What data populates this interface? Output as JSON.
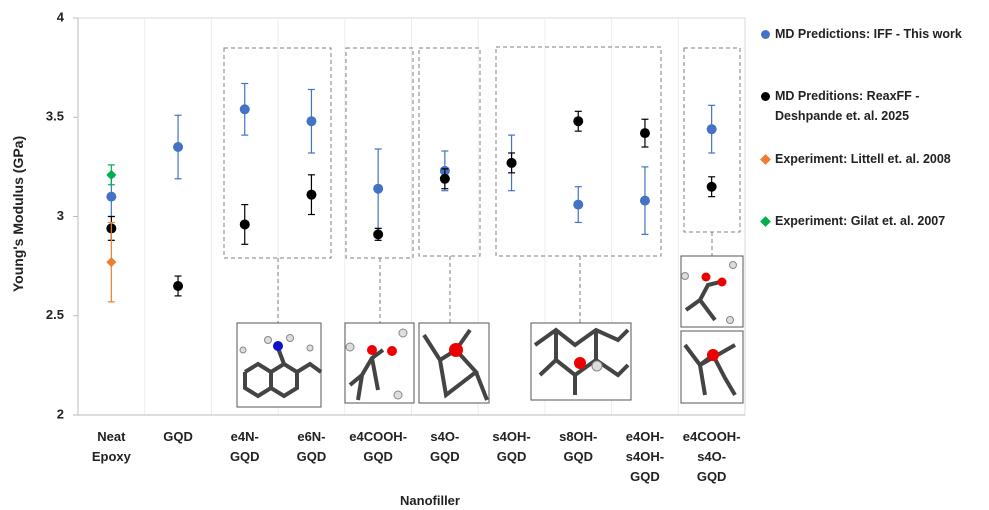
{
  "chart_data": {
    "type": "scatter",
    "y_label": "Young's Modulus (GPa)",
    "x_label": "Nanofiller",
    "categories": [
      "Neat\nEpoxy",
      "GQD",
      "e4N-\nGQD",
      "e6N-\nGQD",
      "e4COOH-\nGQD",
      "s4O-\nGQD",
      "s4OH-\nGQD",
      "s8OH-\nGQD",
      "e4OH-\ns4OH-\nGQD",
      "e4COOH-\ns4O-\nGQD"
    ],
    "series": [
      {
        "name": "MD Predictions: IFF - This work",
        "color": "#4472c4",
        "values": [
          3.1,
          3.35,
          3.54,
          3.48,
          3.14,
          3.23,
          3.27,
          3.06,
          3.08,
          3.44
        ],
        "errors": [
          0.1,
          0.16,
          0.13,
          0.16,
          0.2,
          0.1,
          0.14,
          0.09,
          0.17,
          0.12
        ]
      },
      {
        "name": "MD Preditions: ReaxFF - Deshpande et. al. 2025",
        "color": "#000000",
        "values": [
          2.94,
          2.65,
          2.96,
          3.11,
          2.91,
          3.19,
          3.27,
          3.48,
          3.42,
          3.15
        ],
        "errors": [
          0.06,
          0.05,
          0.1,
          0.1,
          0.03,
          0.05,
          0.05,
          0.05,
          0.07,
          0.05
        ]
      },
      {
        "name": "Experiment: Littell et. al. 2008",
        "color": "#ed7d31",
        "values": [
          2.77,
          null,
          null,
          null,
          null,
          null,
          null,
          null,
          null,
          null
        ],
        "errors": [
          0.2,
          null,
          null,
          null,
          null,
          null,
          null,
          null,
          null,
          null
        ]
      },
      {
        "name": "Experiment: Gilat et. al. 2007",
        "color": "#00b050",
        "values": [
          3.21,
          null,
          null,
          null,
          null,
          null,
          null,
          null,
          null,
          null
        ],
        "errors": [
          0.05,
          null,
          null,
          null,
          null,
          null,
          null,
          null,
          null,
          null
        ]
      }
    ],
    "ylim": [
      2,
      4
    ],
    "yticks": [
      2,
      2.5,
      3,
      3.5,
      4
    ],
    "grid": true,
    "legend": "right"
  }
}
